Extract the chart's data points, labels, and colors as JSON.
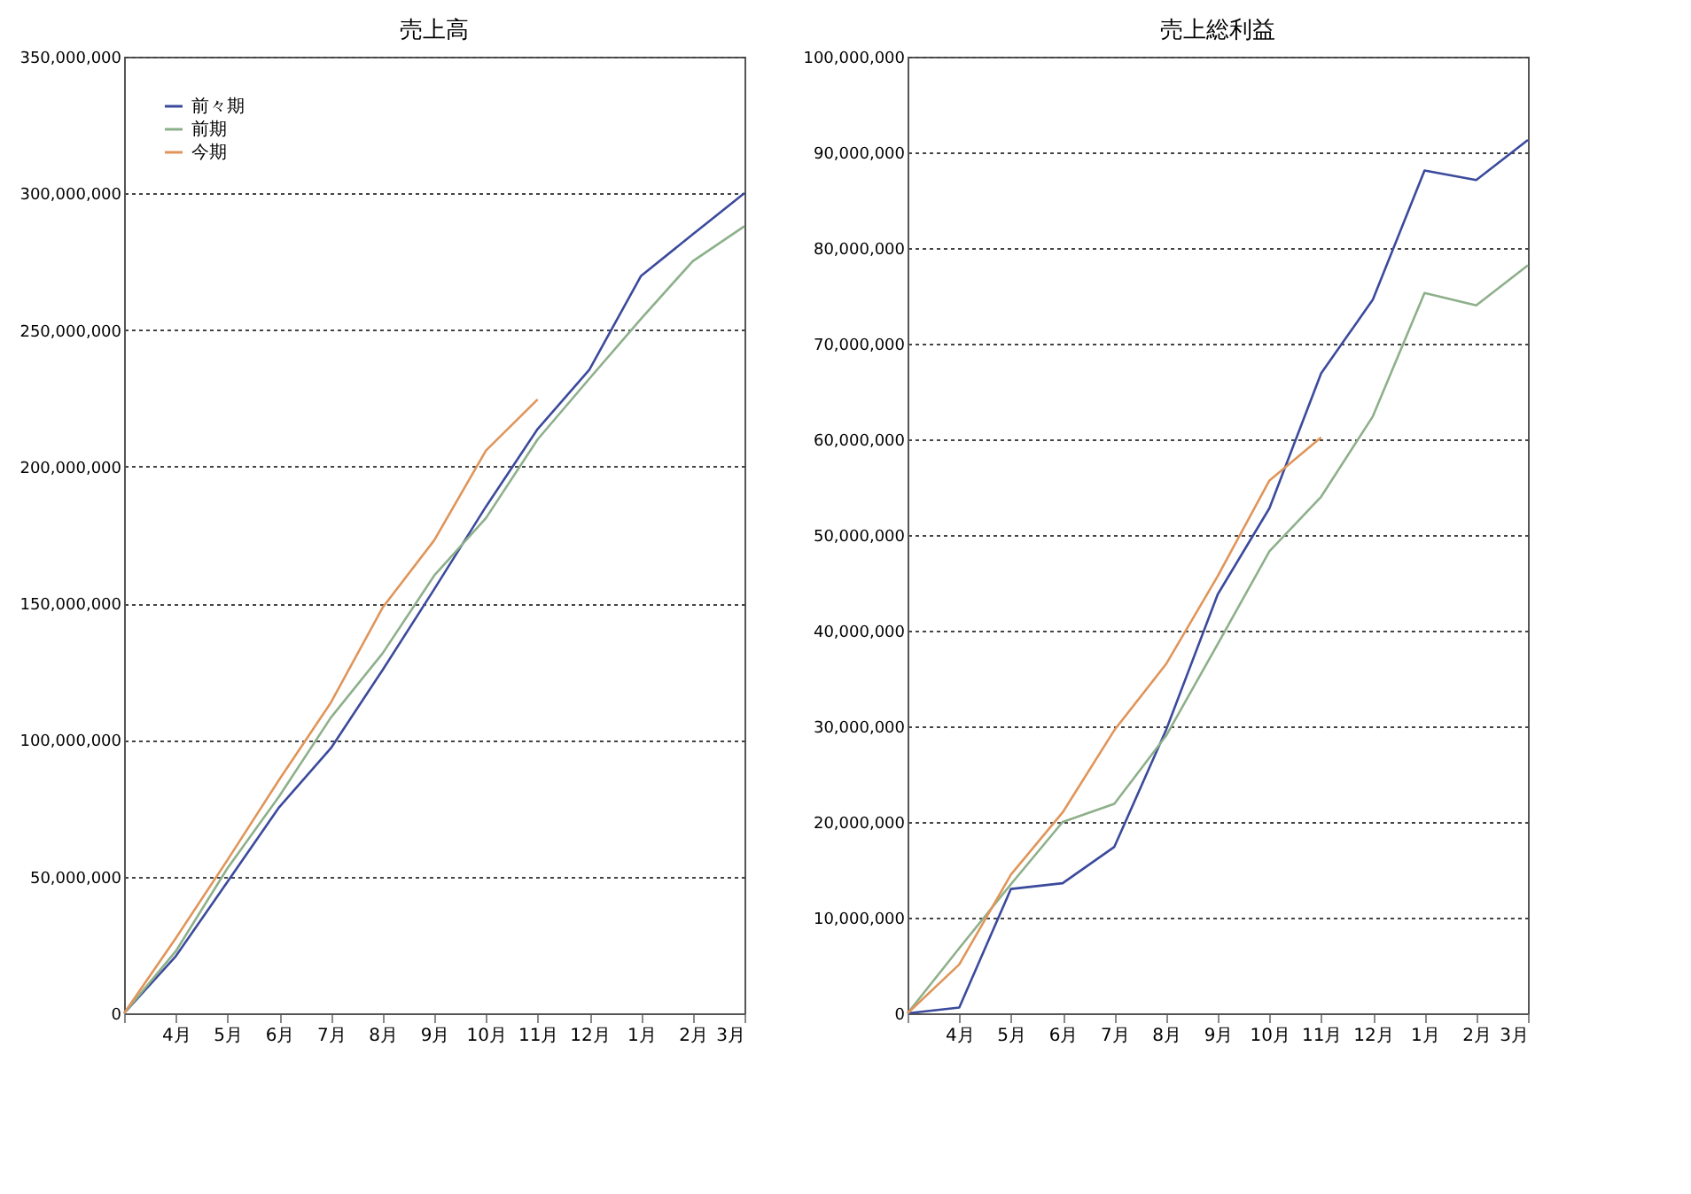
{
  "chart_data": [
    {
      "type": "line",
      "title": "売上高",
      "categories": [
        null,
        "4月",
        "5月",
        "6月",
        "7月",
        "8月",
        "9月",
        "10月",
        "11月",
        "12月",
        "1月",
        "2月",
        "3月"
      ],
      "series": [
        {
          "name": "前々期",
          "color": "#3b4a9c",
          "values": [
            0,
            20900000,
            48100000,
            75400000,
            97000000,
            125600000,
            155200000,
            185400000,
            213800000,
            235500000,
            269800000,
            285000000,
            300100000
          ]
        },
        {
          "name": "前期",
          "color": "#8db08a",
          "values": [
            0,
            22700000,
            53100000,
            79400000,
            108200000,
            131700000,
            160200000,
            181200000,
            210000000,
            232200000,
            254100000,
            275200000,
            288000000
          ]
        },
        {
          "name": "今期",
          "color": "#e0955a",
          "values": [
            0,
            27500000,
            56100000,
            85500000,
            113700000,
            148400000,
            173100000,
            205900000,
            224600000,
            null,
            null,
            null,
            null
          ]
        }
      ],
      "ylim": [
        0,
        350000000
      ],
      "yticks": [
        0,
        {
          "value": 50000000,
          "label": "50,000,000"
        },
        {
          "value": 100000000,
          "label": "100,000,000"
        },
        {
          "value": 150000000,
          "label": "150,000,000"
        },
        {
          "value": 200000000,
          "label": "200,000,000"
        },
        {
          "value": 250000000,
          "label": "250,000,000"
        },
        {
          "value": 300000000,
          "label": "300,000,000"
        },
        {
          "value": 350000000,
          "label": "350,000,000"
        }
      ],
      "grid": "y",
      "legend": "top left",
      "marker": "none",
      "line_style": "solid"
    },
    {
      "type": "line",
      "title": "売上総利益",
      "categories": [
        null,
        "4月",
        "5月",
        "6月",
        "7月",
        "8月",
        "9月",
        "10月",
        "11月",
        "12月",
        "1月",
        "2月",
        "3月"
      ],
      "series": [
        {
          "name": "前々期",
          "color": "#3b4a9c",
          "values": [
            0,
            600000,
            13000000,
            13600000,
            17400000,
            29600000,
            43800000,
            52800000,
            66900000,
            74600000,
            88100000,
            87100000,
            91300000
          ]
        },
        {
          "name": "前期",
          "color": "#8db08a",
          "values": [
            0,
            6800000,
            13500000,
            20000000,
            21900000,
            29000000,
            38600000,
            48300000,
            54000000,
            62400000,
            75300000,
            74000000,
            78200000
          ]
        },
        {
          "name": "今期",
          "color": "#e0955a",
          "values": [
            0,
            5100000,
            14500000,
            21000000,
            29600000,
            36500000,
            45700000,
            55700000,
            60200000,
            null,
            null,
            null,
            null
          ]
        }
      ],
      "ylim": [
        0,
        100000000
      ],
      "yticks": [
        0,
        {
          "value": 10000000,
          "label": "10,000,000"
        },
        {
          "value": 20000000,
          "label": "20,000,000"
        },
        {
          "value": 30000000,
          "label": "30,000,000"
        },
        {
          "value": 40000000,
          "label": "40,000,000"
        },
        {
          "value": 50000000,
          "label": "50,000,000"
        },
        {
          "value": 60000000,
          "label": "60,000,000"
        },
        {
          "value": 70000000,
          "label": "70,000,000"
        },
        {
          "value": 80000000,
          "label": "80,000,000"
        },
        {
          "value": 90000000,
          "label": "90,000,000"
        },
        {
          "value": 100000000,
          "label": "100,000,000"
        }
      ],
      "grid": "y",
      "legend": "top left",
      "marker": "none",
      "line_style": "solid"
    }
  ]
}
